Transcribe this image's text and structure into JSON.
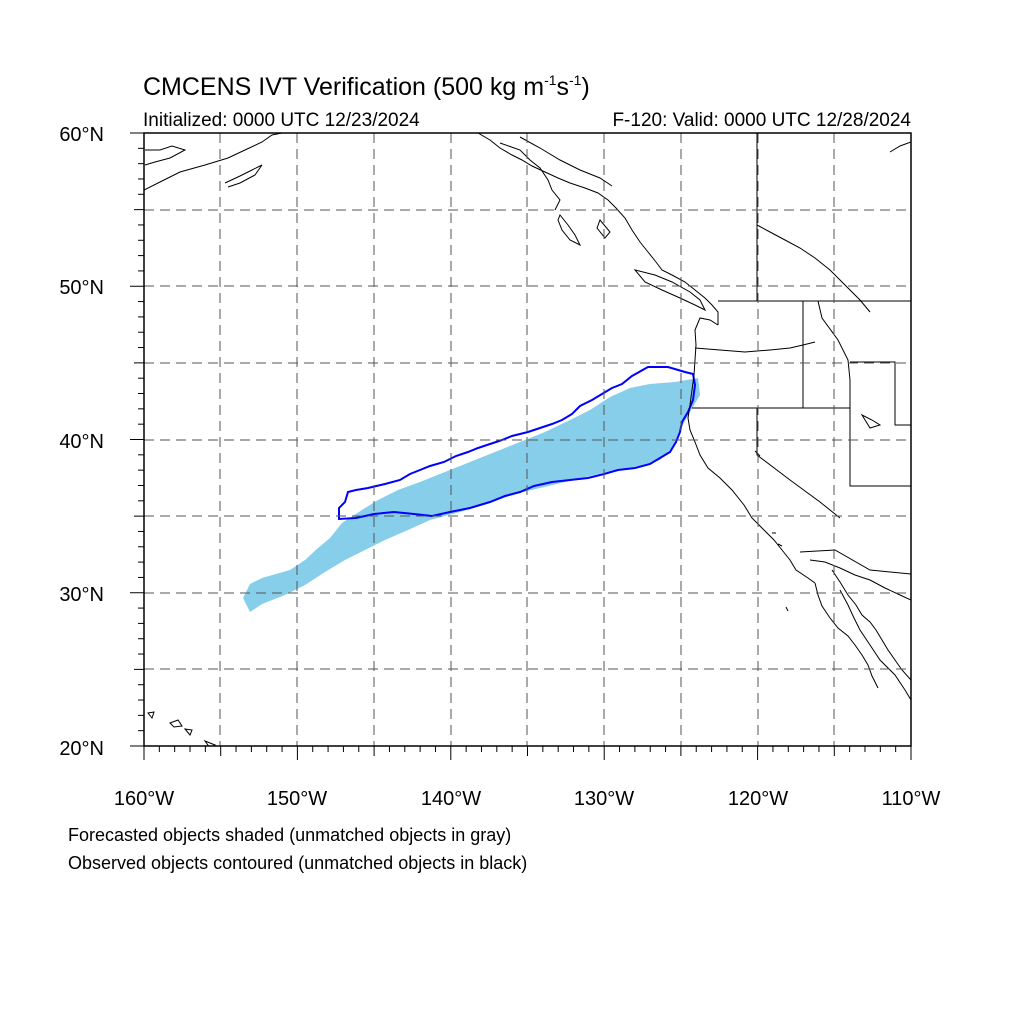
{
  "title": {
    "main": "CMCENS IVT Verification (500 kg m",
    "sup1": "-1",
    "mid": "s",
    "sup2": "-1",
    "end": ")"
  },
  "initialized": "Initialized: 0000 UTC 12/23/2024",
  "valid": "F-120: Valid: 0000 UTC 12/28/2024",
  "lat_labels": [
    "60°N",
    "50°N",
    "40°N",
    "30°N",
    "20°N"
  ],
  "lon_labels": [
    "160°W",
    "150°W",
    "140°W",
    "130°W",
    "120°W",
    "110°W"
  ],
  "legend": {
    "line1": "Forecasted objects shaded (unmatched objects in gray)",
    "line2": "Observed objects contoured (unmatched objects in black)"
  },
  "colors": {
    "forecast_fill": "#87ceeb",
    "observed_contour": "#0000ff",
    "coastline": "#000000",
    "grid": "#555555"
  },
  "map": {
    "lon_range": [
      -160,
      -110
    ],
    "lat_range": [
      20,
      60
    ],
    "projection": "cylindrical equidistant"
  }
}
